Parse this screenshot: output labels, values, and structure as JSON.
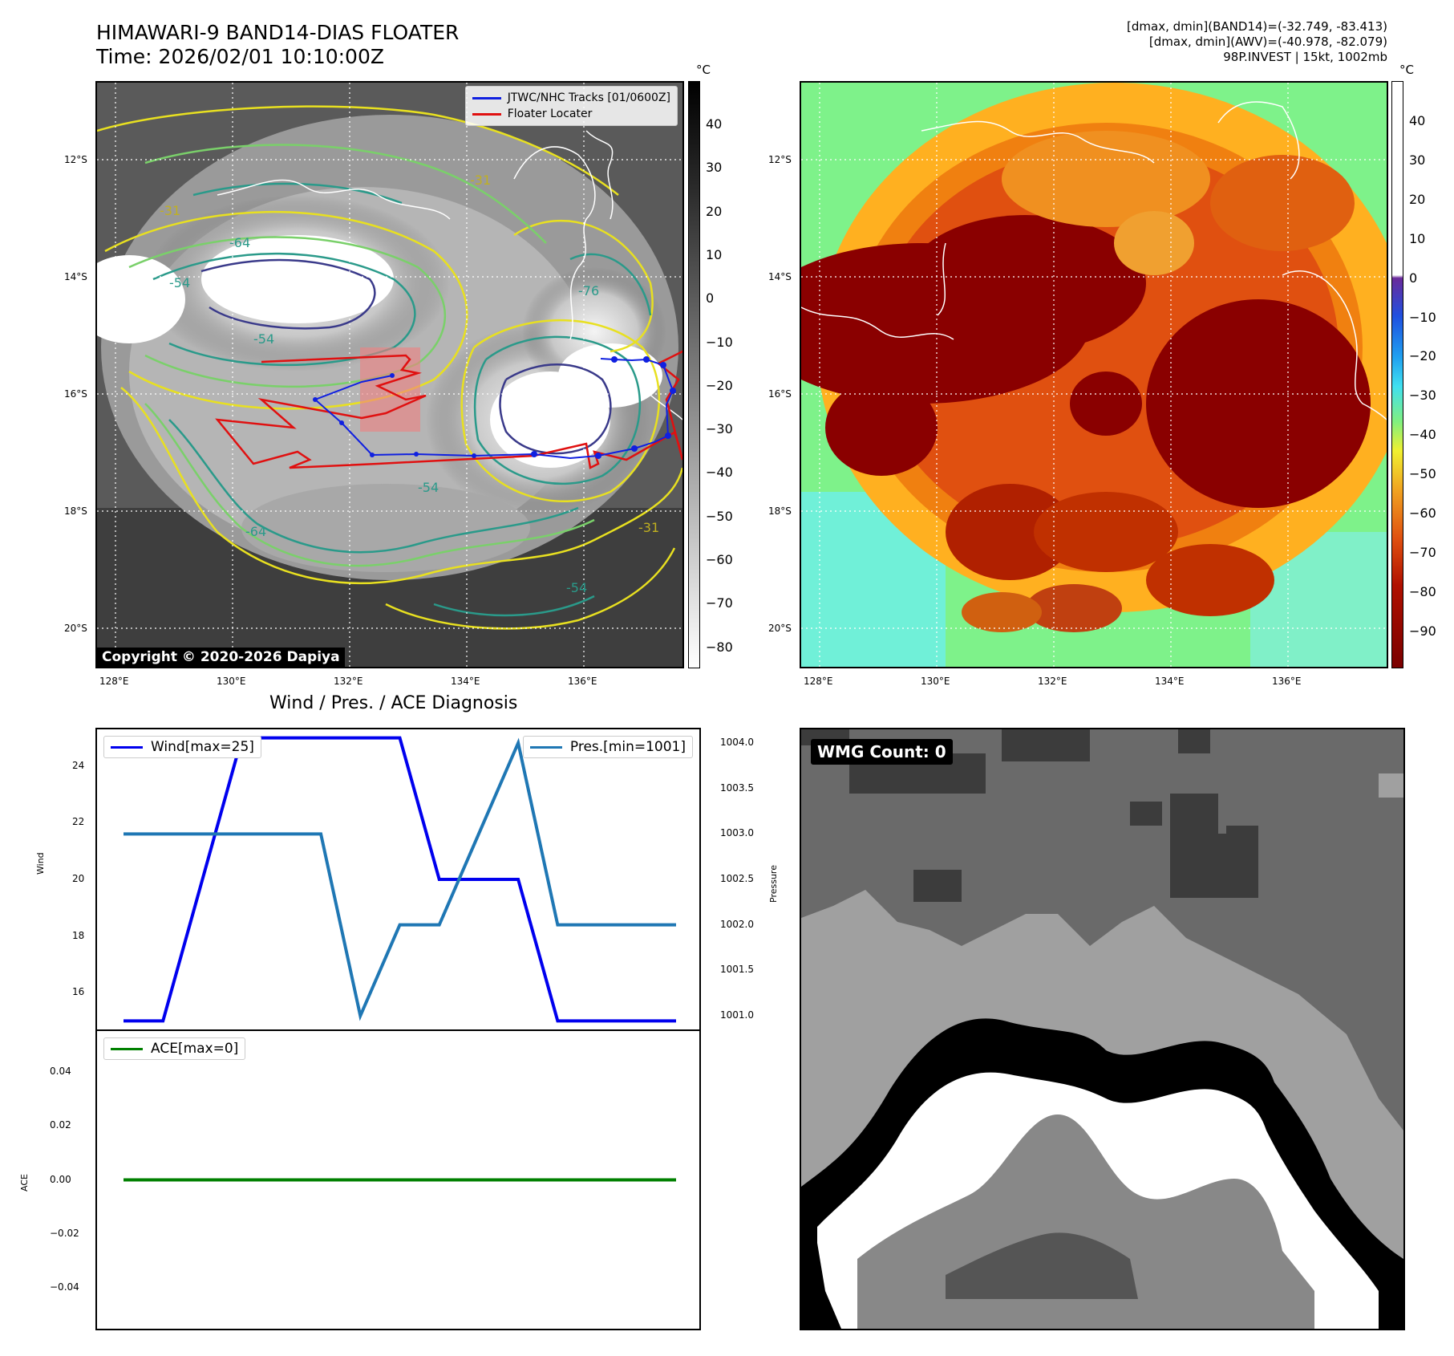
{
  "header": {
    "title_line1": "HIMAWARI-9 BAND14-DIAS FLOATER",
    "title_line2": "Time: 2026/02/01 10:10:00Z",
    "info_line1": "[dmax, dmin](BAND14)=(-32.749, -83.413)",
    "info_line2": "[dmax, dmin](AWV)=(-40.978, -82.079)",
    "info_line3": "98P.INVEST | 15kt, 1002mb"
  },
  "map": {
    "lat_labels": [
      "12°S",
      "14°S",
      "16°S",
      "18°S",
      "20°S"
    ],
    "lon_labels": [
      "128°E",
      "130°E",
      "132°E",
      "134°E",
      "136°E"
    ],
    "copyright": "Copyright © 2020-2026 Dapiya",
    "legend": {
      "tracks_label": "JTWC/NHC Tracks [01/0600Z]",
      "floater_label": "Floater Locater"
    },
    "contour_labels": [
      "-31",
      "-54",
      "-64",
      "-76",
      "-54",
      "-31",
      "-54",
      "-64",
      "-31",
      "-54"
    ],
    "colors": {
      "track": "#1020e0",
      "floater": "#e01010",
      "accent_box": "#f08080"
    }
  },
  "colorbars": {
    "unit": "°C",
    "left_ticks": [
      "40",
      "30",
      "20",
      "10",
      "0",
      "−10",
      "−20",
      "−30",
      "−40",
      "−50",
      "−60",
      "−70",
      "−80"
    ],
    "right_ticks": [
      "40",
      "30",
      "20",
      "10",
      "0",
      "−10",
      "−20",
      "−30",
      "−40",
      "−50",
      "−60",
      "−70",
      "−80",
      "−90"
    ]
  },
  "diagnosis_title": "Wind / Pres. / ACE Diagnosis",
  "wmg": {
    "badge": "WMG Count: 0"
  },
  "chart_data": [
    {
      "type": "line",
      "title": "Wind / Pres. / ACE Diagnosis",
      "x": [
        0,
        1,
        2,
        3,
        4,
        5,
        6,
        7,
        8,
        9,
        10,
        11,
        12,
        13,
        14
      ],
      "series": [
        {
          "name": "Wind[max=25]",
          "axis": "left",
          "color": "#0000ee",
          "values": [
            15,
            15,
            20,
            25,
            25,
            25,
            25,
            25,
            20,
            20,
            20,
            15,
            15,
            15,
            15
          ]
        },
        {
          "name": "Pres.[min=1001]",
          "axis": "right",
          "color": "#1f77b4",
          "values": [
            1003,
            1003,
            1003,
            1003,
            1003,
            1003,
            1001,
            1002,
            1002,
            1003,
            1004,
            1002,
            1002,
            1002,
            1002
          ]
        }
      ],
      "ylabel": "Wind",
      "ylim": [
        14.7,
        25.3
      ],
      "yticks": [
        "16",
        "18",
        "20",
        "22",
        "24"
      ],
      "y2label": "Pressure",
      "y2lim": [
        1000.85,
        1004.15
      ],
      "y2ticks": [
        "1001.0",
        "1001.5",
        "1002.0",
        "1002.5",
        "1003.0",
        "1003.5",
        "1004.0"
      ]
    },
    {
      "type": "line",
      "x": [
        0,
        1,
        2,
        3,
        4,
        5,
        6,
        7,
        8,
        9,
        10,
        11,
        12,
        13,
        14
      ],
      "series": [
        {
          "name": "ACE[max=0]",
          "color": "#008000",
          "values": [
            0,
            0,
            0,
            0,
            0,
            0,
            0,
            0,
            0,
            0,
            0,
            0,
            0,
            0,
            0
          ]
        }
      ],
      "ylabel": "ACE",
      "ylim": [
        -0.055,
        0.055
      ],
      "yticks": [
        "0.04",
        "0.02",
        "0.00",
        "−0.02",
        "−0.04"
      ]
    }
  ]
}
